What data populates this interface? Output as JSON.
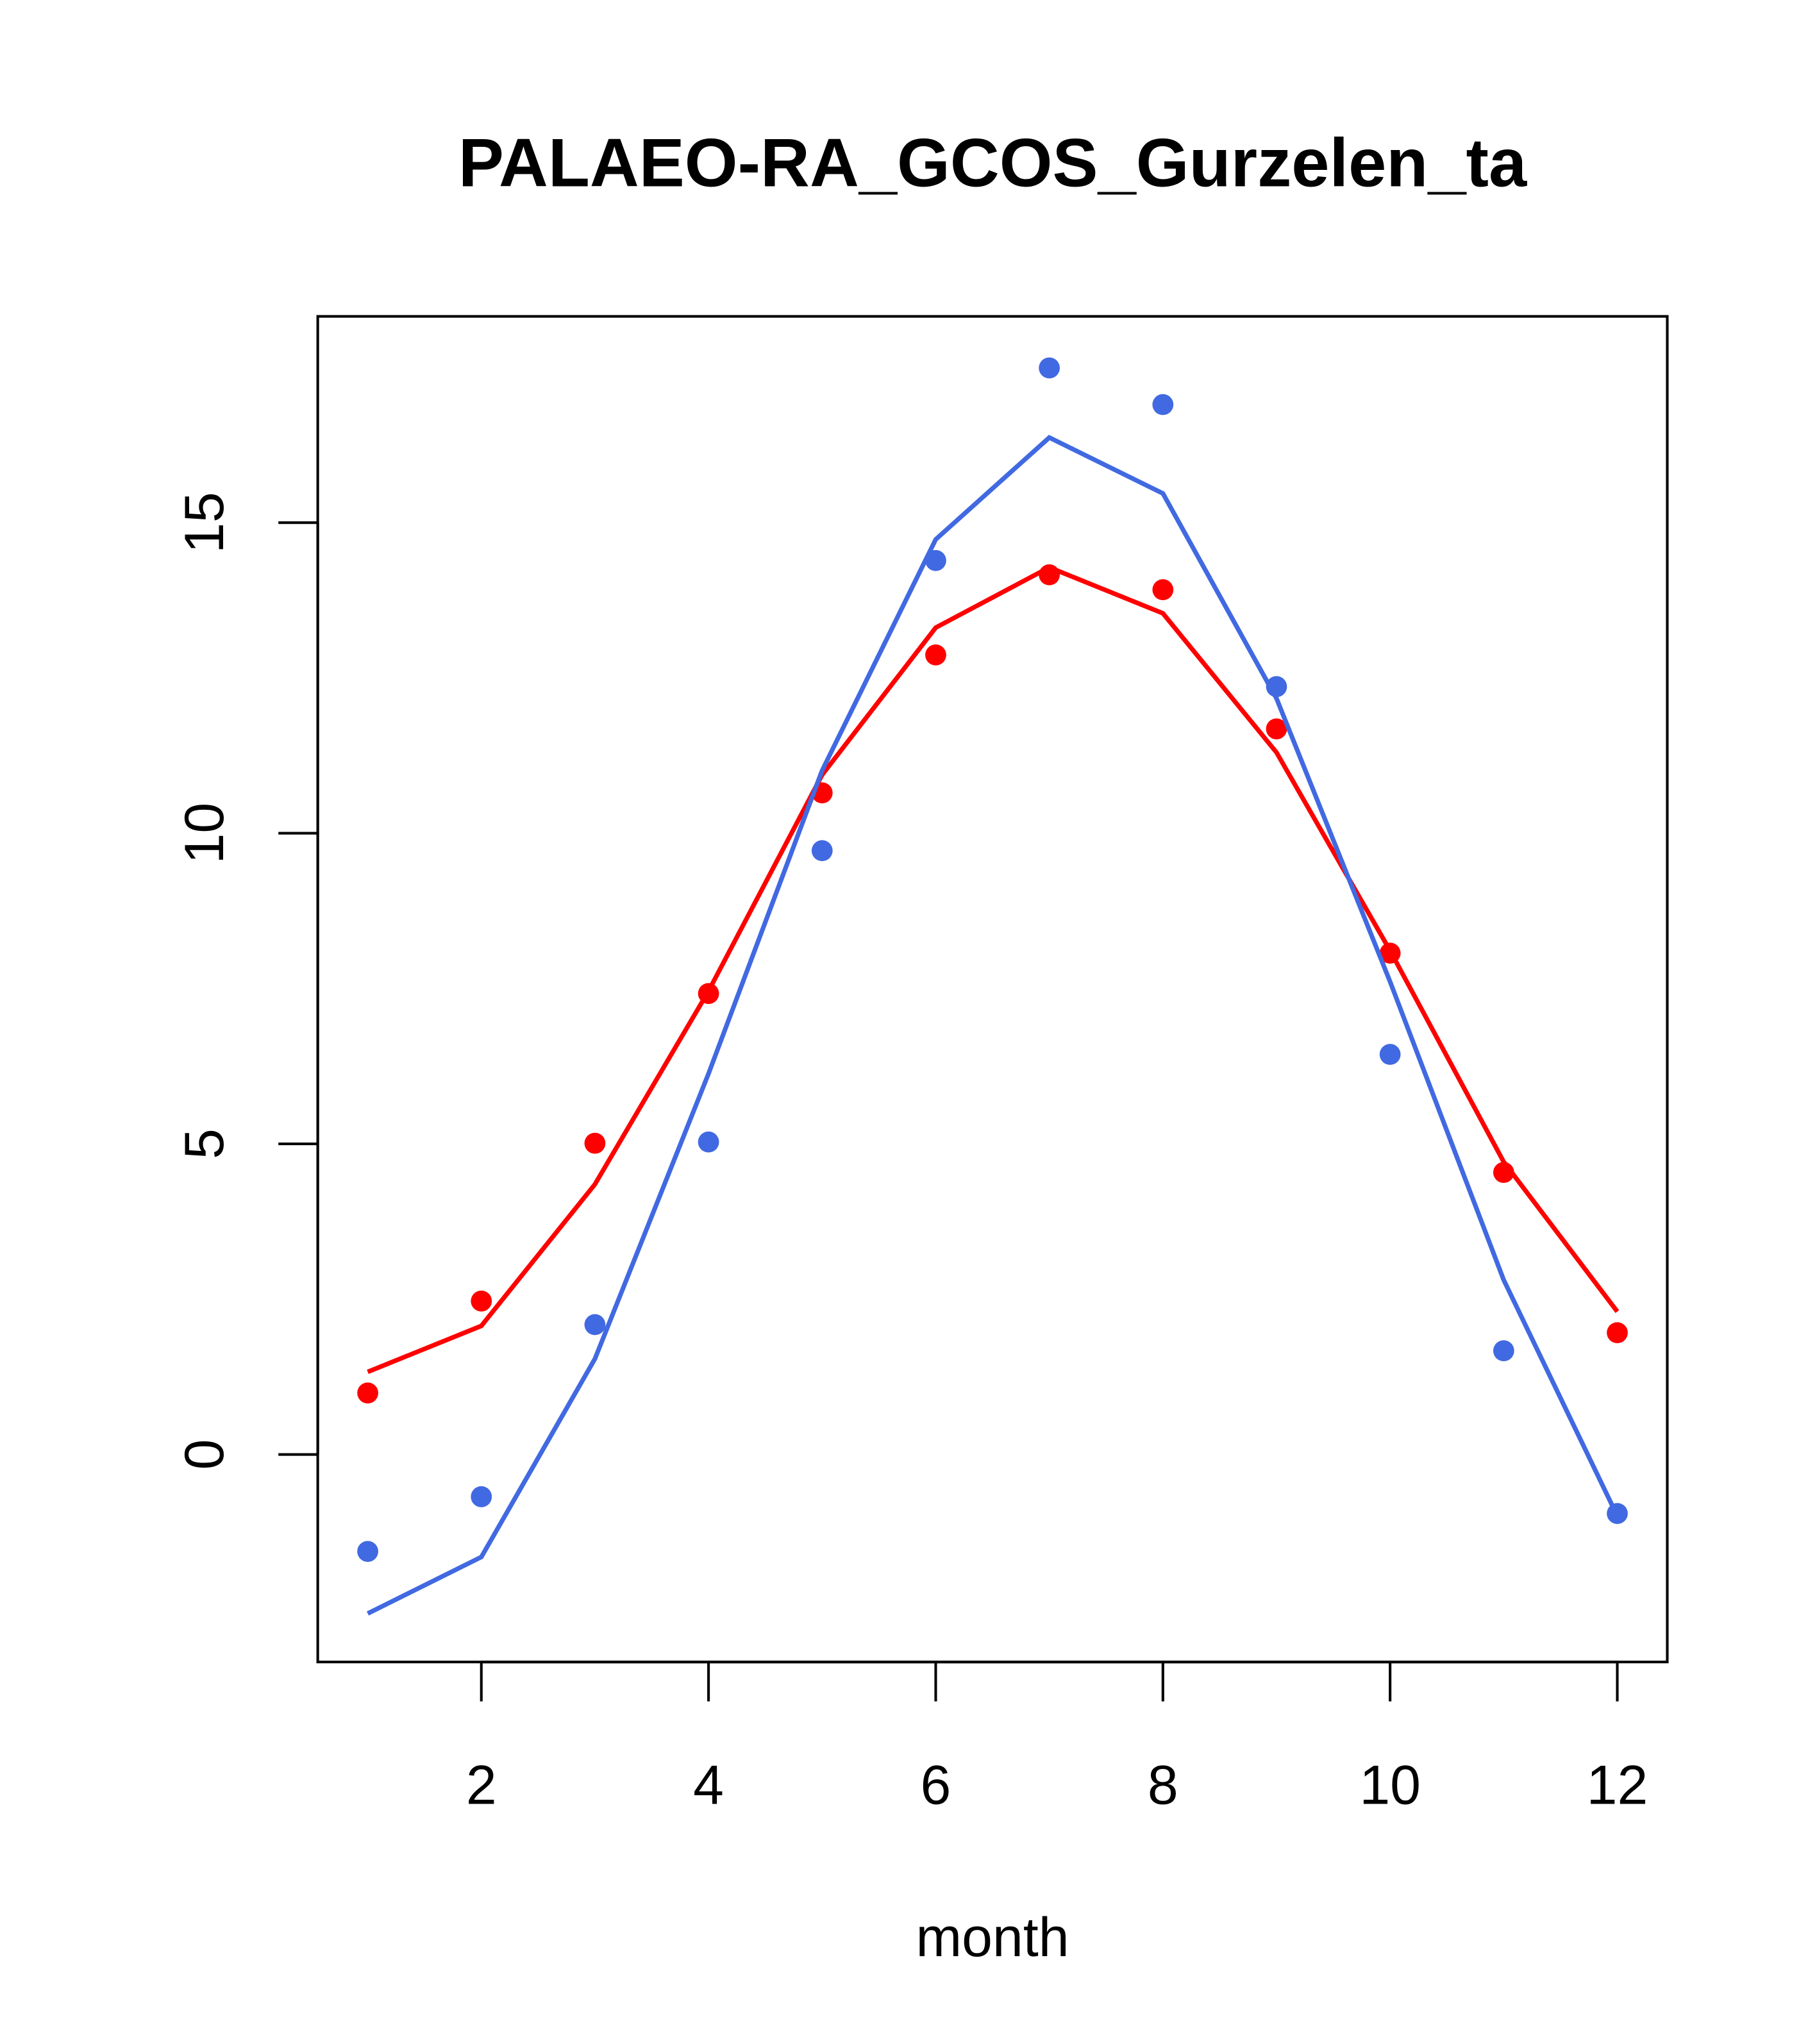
{
  "chart_data": {
    "type": "line",
    "title": "PALAEO-RA_GCOS_Gurzelen_ta",
    "xlabel": "month",
    "ylabel": "",
    "xlim": [
      0.56,
      12.44
    ],
    "ylim": [
      -3.34,
      18.32
    ],
    "xticks": [
      2,
      4,
      6,
      8,
      10,
      12
    ],
    "xtick_labels": [
      "2",
      "4",
      "6",
      "8",
      "10",
      "12"
    ],
    "yticks": [
      0,
      5,
      10,
      15
    ],
    "ytick_labels": [
      "0",
      "5",
      "10",
      "15"
    ],
    "grid": false,
    "x": [
      1,
      2,
      3,
      4,
      5,
      6,
      7,
      8,
      9,
      10,
      11,
      12
    ],
    "series": [
      {
        "name": "red points",
        "kind": "points",
        "color": "#ff0000",
        "values": [
          0.99,
          2.47,
          5.01,
          7.42,
          10.65,
          12.87,
          14.16,
          13.92,
          11.68,
          8.07,
          4.54,
          1.96
        ]
      },
      {
        "name": "red line",
        "kind": "line",
        "color": "#ff0000",
        "values": [
          1.33,
          2.07,
          4.35,
          7.46,
          10.94,
          13.31,
          14.28,
          13.54,
          11.3,
          8.11,
          4.71,
          2.3
        ]
      },
      {
        "name": "blue points",
        "kind": "points",
        "color": "#4169e1",
        "values": [
          -1.56,
          -0.68,
          2.09,
          5.03,
          9.72,
          14.39,
          17.49,
          16.9,
          12.36,
          6.44,
          1.67,
          -0.95
        ]
      },
      {
        "name": "blue line",
        "kind": "line",
        "color": "#4169e1",
        "values": [
          -2.56,
          -1.65,
          1.54,
          6.13,
          11.01,
          14.73,
          16.37,
          15.47,
          12.17,
          7.61,
          2.81,
          -0.99
        ]
      }
    ]
  }
}
